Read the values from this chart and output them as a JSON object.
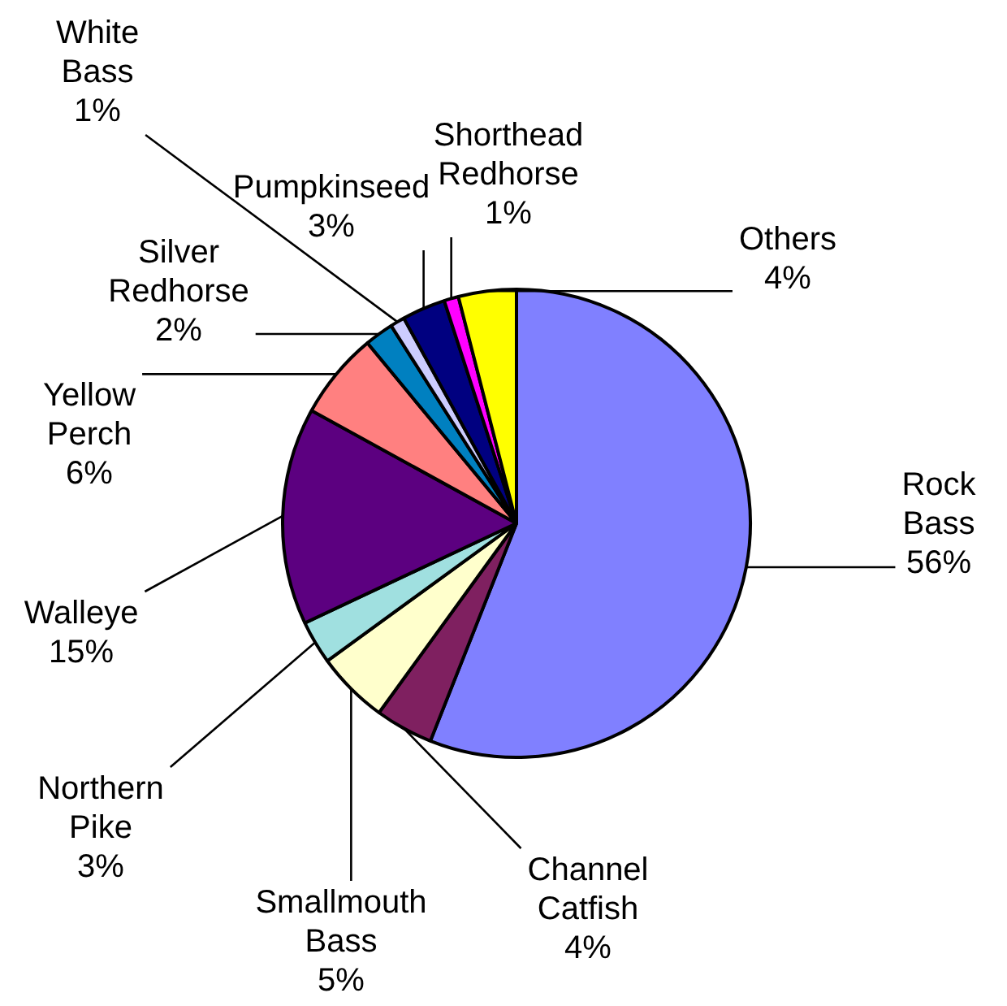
{
  "chart_data": {
    "type": "pie",
    "categories": [
      "Rock Bass",
      "Channel Catfish",
      "Smallmouth Bass",
      "Northern Pike",
      "Walleye",
      "Yellow Perch",
      "Silver Redhorse",
      "White Bass",
      "Pumpkinseed",
      "Shorthead Redhorse",
      "Others"
    ],
    "values": [
      56,
      4,
      5,
      3,
      15,
      6,
      2,
      1,
      3,
      1,
      4
    ],
    "colors": [
      "#8080ff",
      "#7f2060",
      "#ffffcc",
      "#a0e0e0",
      "#5c0080",
      "#ff8080",
      "#0080c0",
      "#ccccff",
      "#000080",
      "#ff00ff",
      "#ffff00"
    ],
    "value_labels": [
      "56%",
      "4%",
      "5%",
      "3%",
      "15%",
      "6%",
      "2%",
      "1%",
      "3%",
      "1%",
      "4%"
    ],
    "legend": false
  }
}
